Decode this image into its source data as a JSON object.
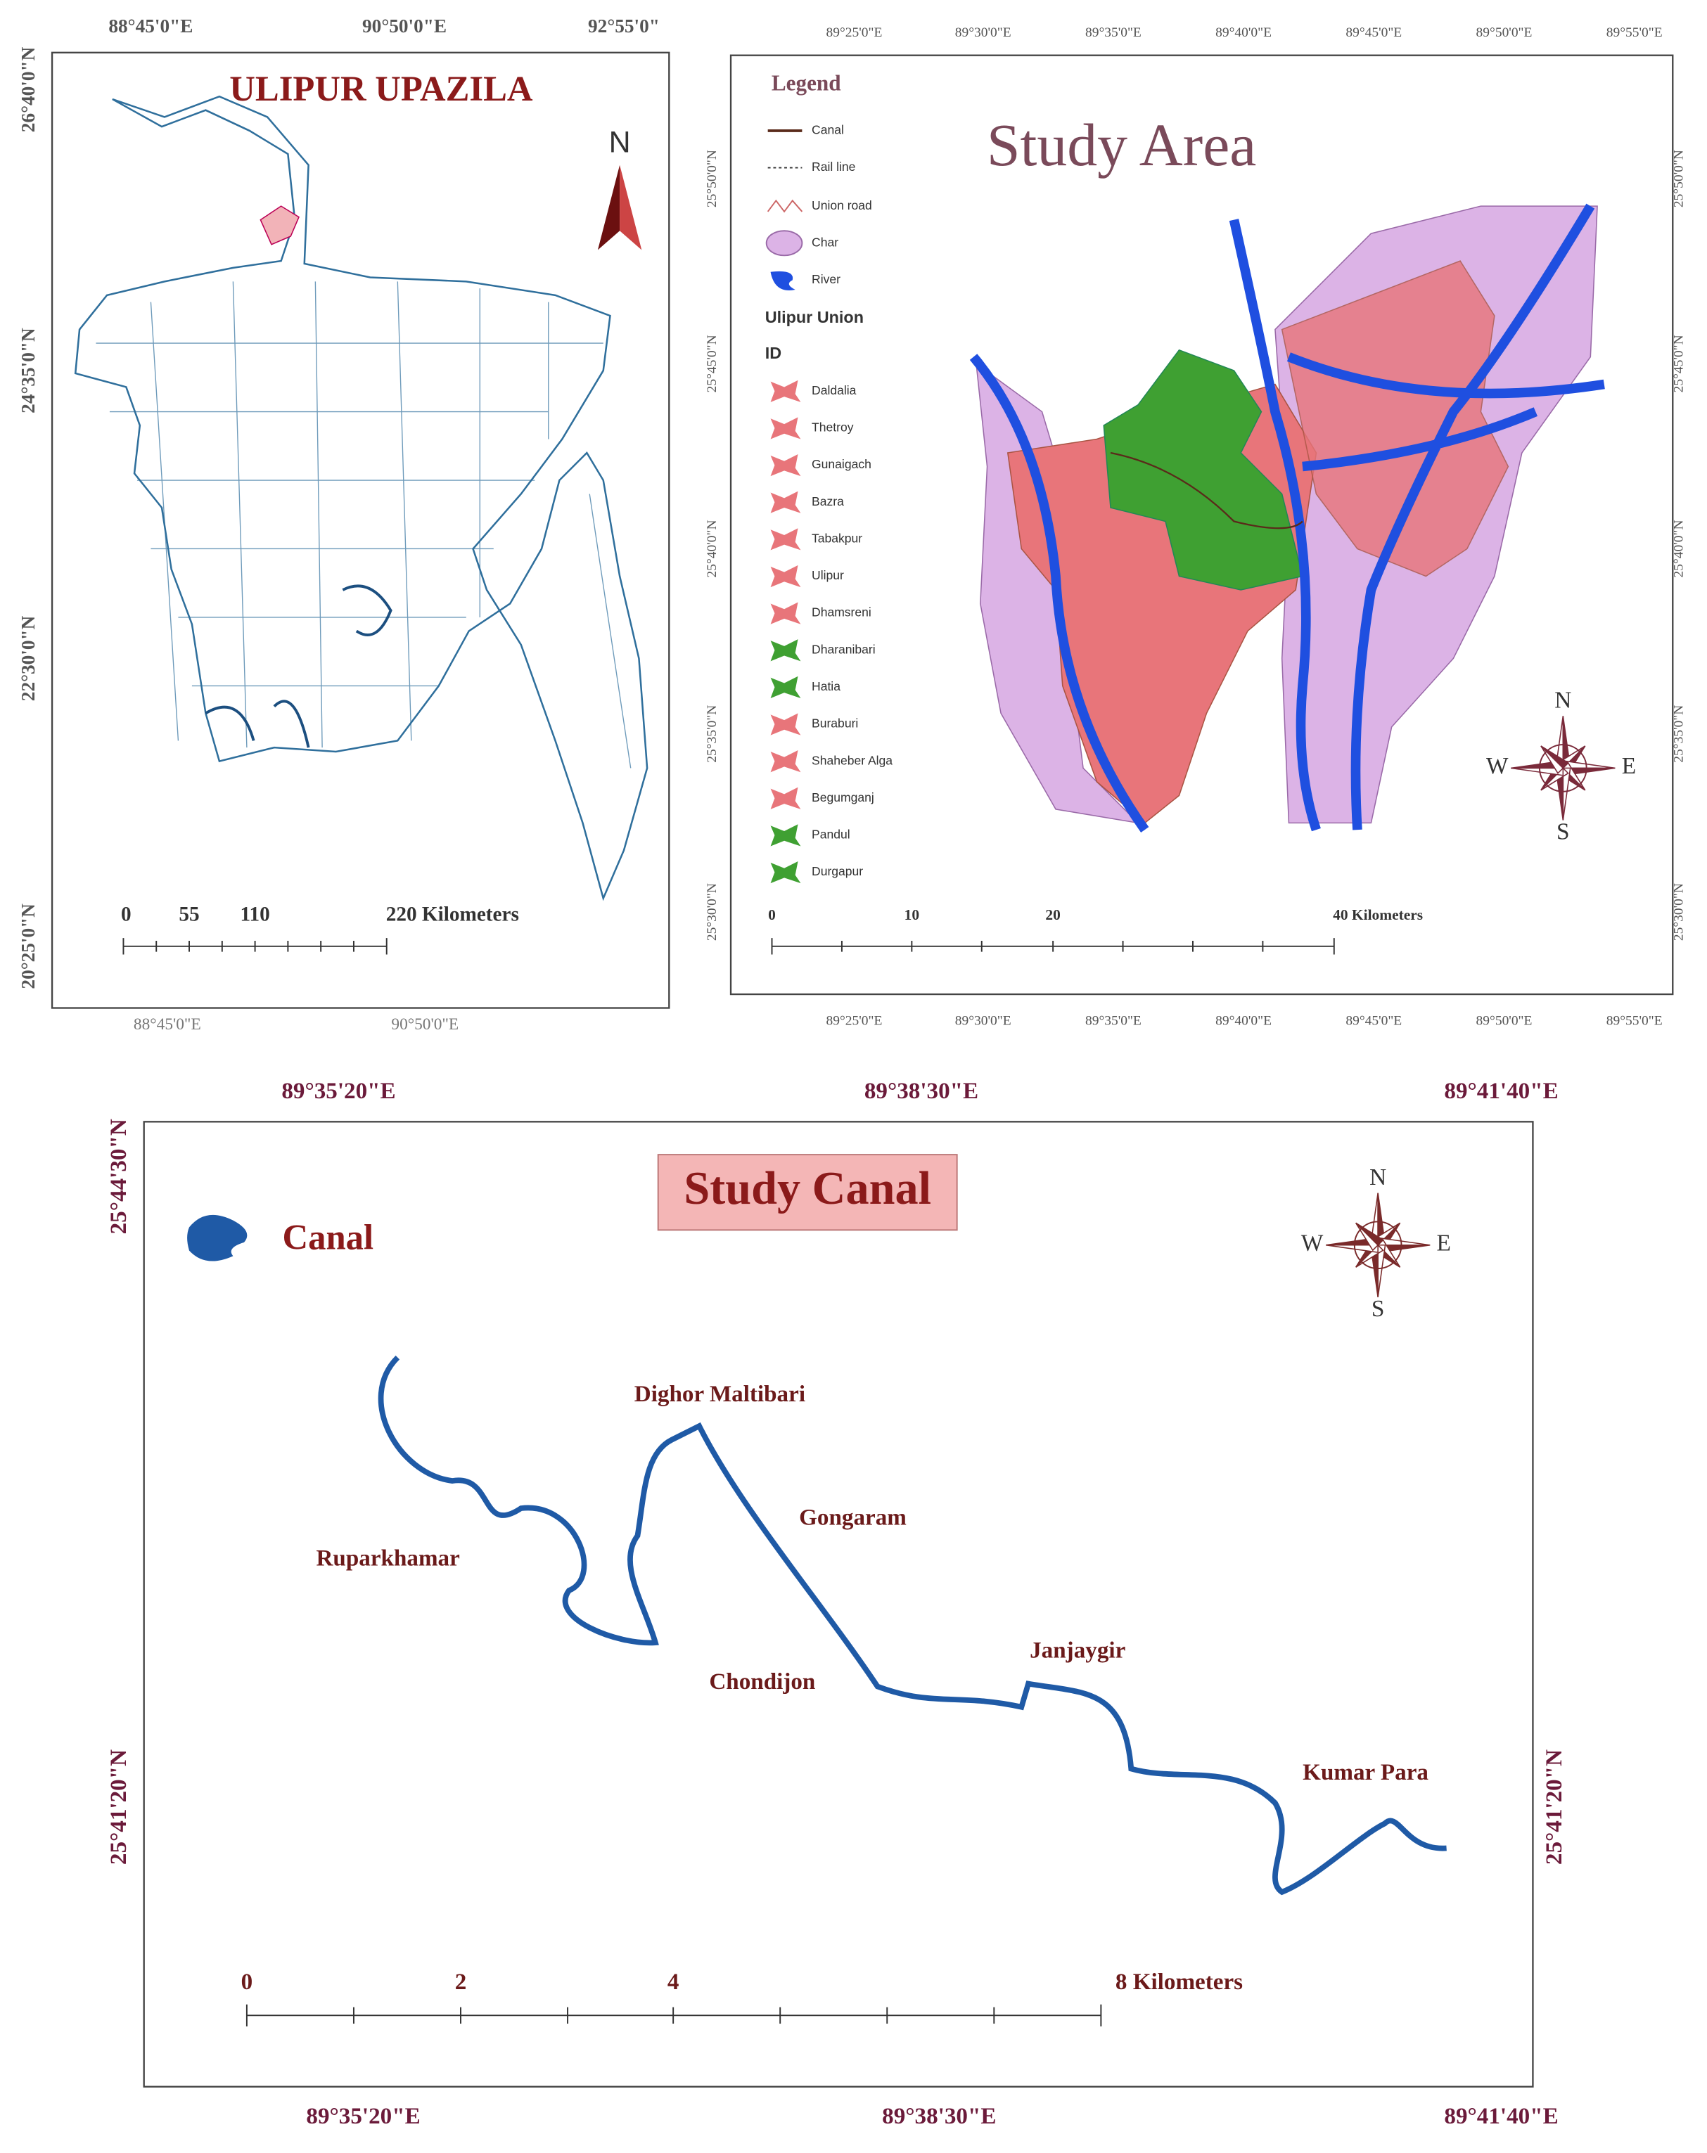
{
  "bangladesh_map": {
    "title": "ULIPUR UPAZILA",
    "north": "N",
    "top_labels": [
      "88°45'0\"E",
      "90°50'0\"E",
      "92°55'0\""
    ],
    "left_labels": [
      "26°40'0\"N",
      "24°35'0\"N",
      "22°30'0\"N",
      "20°25'0\"N"
    ],
    "bottom_labels": [
      "88°45'0\"E",
      "90°50'0\"E"
    ],
    "scale": [
      "0",
      "55",
      "110",
      "220 Kilometers"
    ]
  },
  "study_area_map": {
    "title": "Study Area",
    "legend": {
      "title": "Legend",
      "items": [
        "Canal",
        "Rail line",
        "Union road",
        "Char",
        "River"
      ],
      "union_heading": "Ulipur Union",
      "id_heading": "ID",
      "unions": [
        {
          "name": "Daldalia",
          "color": "#e8757a"
        },
        {
          "name": "Thetroy",
          "color": "#e8757a"
        },
        {
          "name": "Gunaigach",
          "color": "#e8757a"
        },
        {
          "name": "Bazra",
          "color": "#e8757a"
        },
        {
          "name": "Tabakpur",
          "color": "#e8757a"
        },
        {
          "name": "Ulipur",
          "color": "#e8757a"
        },
        {
          "name": "Dhamsreni",
          "color": "#e8757a"
        },
        {
          "name": "Dharanibari",
          "color": "#3fa032"
        },
        {
          "name": "Hatia",
          "color": "#3fa032"
        },
        {
          "name": "Buraburi",
          "color": "#e8757a"
        },
        {
          "name": "Shaheber Alga",
          "color": "#e8757a"
        },
        {
          "name": "Begumganj",
          "color": "#e8757a"
        },
        {
          "name": "Pandul",
          "color": "#3fa032"
        },
        {
          "name": "Durgapur",
          "color": "#3fa032"
        }
      ]
    },
    "top_labels": [
      "89°25'0\"E",
      "89°30'0\"E",
      "89°35'0\"E",
      "89°40'0\"E",
      "89°45'0\"E",
      "89°50'0\"E",
      "89°55'0\"E"
    ],
    "left_labels": [
      "25°50'0\"N",
      "25°45'0\"N",
      "25°40'0\"N",
      "25°35'0\"N",
      "25°30'0\"N"
    ],
    "right_labels": [
      "25°50'0\"N",
      "25°45'0\"N",
      "25°40'0\"N",
      "25°35'0\"N",
      "25°30'0\"N"
    ],
    "bottom_labels": [
      "89°25'0\"E",
      "89°30'0\"E",
      "89°35'0\"E",
      "89°40'0\"E",
      "89°45'0\"E",
      "89°50'0\"E",
      "89°55'0\"E"
    ],
    "compass": [
      "N",
      "W",
      "E",
      "S"
    ],
    "scale": [
      "0",
      "10",
      "20",
      "40 Kilometers"
    ]
  },
  "canal_map": {
    "title": "Study Canal",
    "legend": "Canal",
    "top_labels": [
      "89°35'20\"E",
      "89°38'30\"E",
      "89°41'40\"E"
    ],
    "left_labels": [
      "25°44'30\"N",
      "25°41'20\"N"
    ],
    "right_labels": [
      "25°41'20\"N"
    ],
    "bottom_labels": [
      "89°35'20\"E",
      "89°38'30\"E",
      "89°41'40\"E"
    ],
    "places": [
      "Dighor Maltibari",
      "Gongaram",
      "Ruparkhamar",
      "Chondijon",
      "Janjaygir",
      "Kumar Para"
    ],
    "compass": [
      "N",
      "W",
      "E",
      "S"
    ],
    "scale": [
      "0",
      "2",
      "4",
      "8 Kilometers"
    ]
  }
}
